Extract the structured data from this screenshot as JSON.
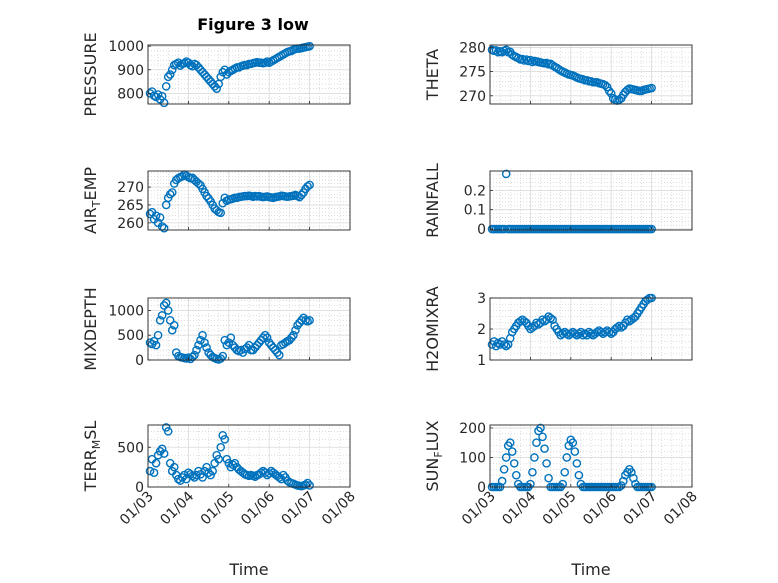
{
  "figure": {
    "title": "Figure 3 low"
  },
  "accent_color": "#0072BD",
  "x_tick_labels": [
    "01/03",
    "01/04",
    "01/05",
    "01/06",
    "01/07",
    "01/08"
  ],
  "chart_data": [
    {
      "type": "scatter",
      "ylabel": "PRESSURE",
      "xlabel": "",
      "xlim": [
        3,
        8
      ],
      "ylim": [
        755,
        1005
      ],
      "yticks": [
        800,
        900,
        1000
      ],
      "grid": true,
      "marker": "circle-open",
      "x": [
        3.05,
        3.1,
        3.15,
        3.2,
        3.25,
        3.3,
        3.35,
        3.4,
        3.45,
        3.5,
        3.55,
        3.6,
        3.65,
        3.7,
        3.75,
        3.8,
        3.85,
        3.9,
        3.95,
        4.0,
        4.05,
        4.1,
        4.15,
        4.2,
        4.25,
        4.3,
        4.35,
        4.4,
        4.45,
        4.5,
        4.55,
        4.6,
        4.65,
        4.7,
        4.75,
        4.8,
        4.85,
        4.9,
        4.95,
        5.0,
        5.05,
        5.1,
        5.15,
        5.2,
        5.25,
        5.3,
        5.35,
        5.4,
        5.45,
        5.5,
        5.55,
        5.6,
        5.65,
        5.7,
        5.75,
        5.8,
        5.85,
        5.9,
        5.95,
        6.0,
        6.05,
        6.1,
        6.15,
        6.2,
        6.25,
        6.3,
        6.35,
        6.4,
        6.45,
        6.5,
        6.55,
        6.6,
        6.65,
        6.7,
        6.75,
        6.8,
        6.85,
        6.9,
        6.95,
        7.0
      ],
      "y": [
        800,
        808,
        790,
        785,
        795,
        775,
        788,
        760,
        830,
        870,
        880,
        900,
        920,
        925,
        930,
        918,
        925,
        928,
        935,
        930,
        920,
        915,
        925,
        920,
        910,
        900,
        890,
        880,
        870,
        860,
        850,
        840,
        830,
        820,
        840,
        870,
        890,
        900,
        880,
        890,
        895,
        900,
        905,
        910,
        910,
        915,
        918,
        920,
        920,
        925,
        925,
        928,
        930,
        932,
        930,
        930,
        928,
        930,
        935,
        930,
        935,
        940,
        945,
        950,
        955,
        960,
        965,
        970,
        975,
        978,
        980,
        985,
        988,
        990,
        990,
        992,
        994,
        996,
        998,
        1000
      ]
    },
    {
      "type": "scatter",
      "ylabel": "THETA",
      "xlabel": "",
      "xlim": [
        3,
        8
      ],
      "ylim": [
        268.3,
        280.5
      ],
      "yticks": [
        270,
        275,
        280
      ],
      "grid": true,
      "marker": "circle-open",
      "x": [
        3.05,
        3.1,
        3.15,
        3.2,
        3.25,
        3.3,
        3.35,
        3.4,
        3.45,
        3.5,
        3.55,
        3.6,
        3.65,
        3.7,
        3.75,
        3.8,
        3.85,
        3.9,
        3.95,
        4.0,
        4.05,
        4.1,
        4.15,
        4.2,
        4.25,
        4.3,
        4.35,
        4.4,
        4.45,
        4.5,
        4.55,
        4.6,
        4.65,
        4.7,
        4.75,
        4.8,
        4.85,
        4.9,
        4.95,
        5.0,
        5.05,
        5.1,
        5.15,
        5.2,
        5.25,
        5.3,
        5.35,
        5.4,
        5.45,
        5.5,
        5.55,
        5.6,
        5.65,
        5.7,
        5.75,
        5.8,
        5.85,
        5.9,
        5.95,
        6.0,
        6.05,
        6.1,
        6.15,
        6.2,
        6.25,
        6.3,
        6.35,
        6.4,
        6.45,
        6.5,
        6.55,
        6.6,
        6.65,
        6.7,
        6.75,
        6.8,
        6.85,
        6.9,
        6.95,
        7.0
      ],
      "y": [
        279.5,
        279.3,
        279.4,
        279,
        279.2,
        279,
        279.3,
        279.5,
        279,
        279.1,
        278.5,
        278.2,
        278,
        277.8,
        277.5,
        277.6,
        277.3,
        277.5,
        277.2,
        277.4,
        277,
        277.2,
        277.1,
        277,
        276.9,
        276.8,
        276.7,
        276.8,
        276.5,
        276.6,
        276.3,
        276,
        275.8,
        275.5,
        275.2,
        275,
        274.8,
        274.6,
        274.4,
        274.3,
        274.2,
        274,
        273.8,
        273.6,
        273.5,
        273.4,
        273.2,
        273.2,
        273,
        273,
        272.8,
        272.8,
        272.8,
        272.6,
        272.5,
        272.4,
        272.2,
        271.8,
        271,
        270.5,
        269.5,
        269.2,
        269,
        269.2,
        269.5,
        270.2,
        270.8,
        271.2,
        271.5,
        271.4,
        271.3,
        271.2,
        271.1,
        271.0,
        271.0,
        271.2,
        271.3,
        271.4,
        271.5,
        271.6
      ]
    },
    {
      "type": "scatter",
      "ylabel": "AIR_TEMP",
      "xlabel": "",
      "xlim": [
        3,
        8
      ],
      "ylim": [
        258,
        274.5
      ],
      "yticks": [
        260,
        265,
        270
      ],
      "grid": true,
      "marker": "circle-open",
      "x": [
        3.05,
        3.1,
        3.15,
        3.2,
        3.25,
        3.3,
        3.35,
        3.4,
        3.45,
        3.5,
        3.55,
        3.6,
        3.65,
        3.7,
        3.75,
        3.8,
        3.85,
        3.9,
        3.95,
        4.0,
        4.05,
        4.1,
        4.15,
        4.2,
        4.25,
        4.3,
        4.35,
        4.4,
        4.45,
        4.5,
        4.55,
        4.6,
        4.65,
        4.7,
        4.75,
        4.8,
        4.85,
        4.9,
        4.95,
        5.0,
        5.05,
        5.1,
        5.15,
        5.2,
        5.25,
        5.3,
        5.35,
        5.4,
        5.45,
        5.5,
        5.55,
        5.6,
        5.65,
        5.7,
        5.75,
        5.8,
        5.85,
        5.9,
        5.95,
        6.0,
        6.05,
        6.1,
        6.15,
        6.2,
        6.25,
        6.3,
        6.35,
        6.4,
        6.45,
        6.5,
        6.55,
        6.6,
        6.65,
        6.7,
        6.75,
        6.8,
        6.85,
        6.9,
        6.95,
        7.0
      ],
      "y": [
        262.5,
        263,
        261,
        262,
        260,
        261.5,
        259,
        258.5,
        265,
        267,
        268,
        268.5,
        271,
        272,
        272.5,
        272.8,
        273,
        273.5,
        273.2,
        272.8,
        272.5,
        272.6,
        272,
        271.5,
        271,
        270.5,
        269.5,
        268.5,
        267.5,
        266.8,
        266,
        265,
        264,
        263.5,
        263,
        262.8,
        265.5,
        267,
        266.2,
        266.5,
        266.6,
        266.8,
        267,
        267,
        267.2,
        267.3,
        267.4,
        267.5,
        267.5,
        267.6,
        267.5,
        267.3,
        267.5,
        267.4,
        267.5,
        267.3,
        267.2,
        267.3,
        267.4,
        267.2,
        267.1,
        267,
        267.2,
        267.3,
        267.4,
        267.6,
        267.5,
        267.4,
        267.3,
        267.4,
        267.5,
        267.6,
        267.8,
        267.5,
        267.2,
        267.8,
        268.5,
        269.5,
        270.2,
        270.6
      ]
    },
    {
      "type": "scatter",
      "ylabel": "RAINFALL",
      "xlabel": "",
      "xlim": [
        3,
        8
      ],
      "ylim": [
        -0.005,
        0.3
      ],
      "yticks": [
        0,
        0.1,
        0.2
      ],
      "grid": true,
      "marker": "circle-open",
      "x": [
        3.05,
        3.1,
        3.15,
        3.2,
        3.25,
        3.3,
        3.35,
        3.4,
        3.45,
        3.5,
        3.55,
        3.6,
        3.65,
        3.7,
        3.75,
        3.8,
        3.85,
        3.9,
        3.95,
        4.0,
        4.05,
        4.1,
        4.15,
        4.2,
        4.25,
        4.3,
        4.35,
        4.4,
        4.45,
        4.5,
        4.55,
        4.6,
        4.65,
        4.7,
        4.75,
        4.8,
        4.85,
        4.9,
        4.95,
        5.0,
        5.05,
        5.1,
        5.15,
        5.2,
        5.25,
        5.3,
        5.35,
        5.4,
        5.45,
        5.5,
        5.55,
        5.6,
        5.65,
        5.7,
        5.75,
        5.8,
        5.85,
        5.9,
        5.95,
        6.0,
        6.05,
        6.1,
        6.15,
        6.2,
        6.25,
        6.3,
        6.35,
        6.4,
        6.45,
        6.5,
        6.55,
        6.6,
        6.65,
        6.7,
        6.75,
        6.8,
        6.85,
        6.9,
        6.95,
        7.0
      ],
      "y": [
        0,
        0,
        0,
        0,
        0,
        0,
        0,
        0.285,
        0,
        0,
        0,
        0,
        0,
        0,
        0,
        0,
        0,
        0,
        0,
        0,
        0,
        0,
        0,
        0,
        0,
        0,
        0,
        0,
        0,
        0,
        0,
        0,
        0,
        0,
        0,
        0,
        0,
        0,
        0,
        0,
        0,
        0,
        0,
        0,
        0,
        0,
        0,
        0,
        0,
        0,
        0,
        0,
        0,
        0,
        0,
        0,
        0,
        0,
        0,
        0,
        0,
        0,
        0,
        0,
        0,
        0,
        0,
        0,
        0,
        0,
        0,
        0,
        0,
        0,
        0,
        0,
        0,
        0,
        0,
        0
      ]
    },
    {
      "type": "scatter",
      "ylabel": "MIXDEPTH",
      "xlabel": "",
      "xlim": [
        3,
        8
      ],
      "ylim": [
        0,
        1250
      ],
      "yticks": [
        0,
        500,
        1000
      ],
      "grid": true,
      "marker": "circle-open",
      "x": [
        3.05,
        3.1,
        3.15,
        3.2,
        3.25,
        3.3,
        3.35,
        3.4,
        3.45,
        3.5,
        3.55,
        3.6,
        3.65,
        3.7,
        3.75,
        3.8,
        3.85,
        3.9,
        3.95,
        4.0,
        4.05,
        4.1,
        4.15,
        4.2,
        4.25,
        4.3,
        4.35,
        4.4,
        4.45,
        4.5,
        4.55,
        4.6,
        4.65,
        4.7,
        4.75,
        4.8,
        4.85,
        4.9,
        4.95,
        5.0,
        5.05,
        5.1,
        5.15,
        5.2,
        5.25,
        5.3,
        5.35,
        5.4,
        5.45,
        5.5,
        5.55,
        5.6,
        5.65,
        5.7,
        5.75,
        5.8,
        5.85,
        5.9,
        5.95,
        6.0,
        6.05,
        6.1,
        6.15,
        6.2,
        6.25,
        6.3,
        6.35,
        6.4,
        6.45,
        6.5,
        6.55,
        6.6,
        6.65,
        6.7,
        6.75,
        6.8,
        6.85,
        6.9,
        6.95,
        7.0
      ],
      "y": [
        350,
        320,
        380,
        300,
        500,
        800,
        900,
        1100,
        1150,
        1000,
        800,
        600,
        700,
        150,
        80,
        60,
        50,
        40,
        30,
        50,
        20,
        60,
        100,
        200,
        300,
        400,
        500,
        350,
        250,
        150,
        100,
        60,
        40,
        20,
        10,
        30,
        80,
        400,
        300,
        350,
        450,
        300,
        250,
        200,
        180,
        200,
        150,
        220,
        250,
        300,
        200,
        200,
        250,
        300,
        350,
        400,
        450,
        500,
        450,
        350,
        300,
        250,
        200,
        150,
        100,
        300,
        320,
        350,
        380,
        400,
        450,
        500,
        600,
        700,
        750,
        800,
        850,
        800,
        780,
        800
      ]
    },
    {
      "type": "scatter",
      "ylabel": "H2OMIXRA",
      "xlabel": "",
      "xlim": [
        3,
        8
      ],
      "ylim": [
        1,
        3
      ],
      "yticks": [
        1,
        2,
        3
      ],
      "grid": true,
      "marker": "circle-open",
      "x": [
        3.05,
        3.1,
        3.15,
        3.2,
        3.25,
        3.3,
        3.35,
        3.4,
        3.45,
        3.5,
        3.55,
        3.6,
        3.65,
        3.7,
        3.75,
        3.8,
        3.85,
        3.9,
        3.95,
        4.0,
        4.05,
        4.1,
        4.15,
        4.2,
        4.25,
        4.3,
        4.35,
        4.4,
        4.45,
        4.5,
        4.55,
        4.6,
        4.65,
        4.7,
        4.75,
        4.8,
        4.85,
        4.9,
        4.95,
        5.0,
        5.05,
        5.1,
        5.15,
        5.2,
        5.25,
        5.3,
        5.35,
        5.4,
        5.45,
        5.5,
        5.55,
        5.6,
        5.65,
        5.7,
        5.75,
        5.8,
        5.85,
        5.9,
        5.95,
        6.0,
        6.05,
        6.1,
        6.15,
        6.2,
        6.25,
        6.3,
        6.35,
        6.4,
        6.45,
        6.5,
        6.55,
        6.6,
        6.65,
        6.7,
        6.75,
        6.8,
        6.85,
        6.9,
        6.95,
        7.0
      ],
      "y": [
        1.5,
        1.6,
        1.45,
        1.55,
        1.5,
        1.6,
        1.5,
        1.45,
        1.5,
        1.7,
        1.9,
        2.0,
        2.1,
        2.2,
        2.25,
        2.3,
        2.25,
        2.2,
        2.1,
        2.0,
        2.05,
        2.1,
        2.2,
        2.15,
        2.2,
        2.3,
        2.25,
        2.3,
        2.4,
        2.35,
        2.3,
        2.1,
        2.0,
        1.9,
        1.8,
        1.85,
        1.9,
        1.85,
        1.8,
        1.85,
        1.9,
        1.85,
        1.8,
        1.85,
        1.9,
        1.8,
        1.85,
        1.8,
        1.9,
        1.85,
        1.8,
        1.85,
        1.9,
        1.95,
        1.9,
        1.85,
        1.9,
        1.95,
        1.9,
        1.85,
        1.9,
        2.0,
        2.05,
        2.1,
        2.05,
        2.1,
        2.2,
        2.3,
        2.25,
        2.3,
        2.35,
        2.4,
        2.5,
        2.6,
        2.7,
        2.8,
        2.9,
        2.95,
        3.0,
        3.0
      ]
    },
    {
      "type": "scatter",
      "ylabel": "TERR_MSL",
      "xlabel": "Time",
      "xlim": [
        3,
        8
      ],
      "ylim": [
        0,
        780
      ],
      "yticks": [
        0,
        500
      ],
      "grid": true,
      "marker": "circle-open",
      "x": [
        3.05,
        3.1,
        3.15,
        3.2,
        3.25,
        3.3,
        3.35,
        3.4,
        3.45,
        3.5,
        3.55,
        3.6,
        3.65,
        3.7,
        3.75,
        3.8,
        3.85,
        3.9,
        3.95,
        4.0,
        4.05,
        4.1,
        4.15,
        4.2,
        4.25,
        4.3,
        4.35,
        4.4,
        4.45,
        4.5,
        4.55,
        4.6,
        4.65,
        4.7,
        4.75,
        4.8,
        4.85,
        4.9,
        4.95,
        5.0,
        5.05,
        5.1,
        5.15,
        5.2,
        5.25,
        5.3,
        5.35,
        5.4,
        5.45,
        5.5,
        5.55,
        5.6,
        5.65,
        5.7,
        5.75,
        5.8,
        5.85,
        5.9,
        5.95,
        6.0,
        6.05,
        6.1,
        6.15,
        6.2,
        6.25,
        6.3,
        6.35,
        6.4,
        6.45,
        6.5,
        6.55,
        6.6,
        6.65,
        6.7,
        6.75,
        6.8,
        6.85,
        6.9,
        6.95,
        7.0
      ],
      "y": [
        200,
        350,
        180,
        300,
        400,
        450,
        480,
        420,
        750,
        700,
        300,
        200,
        250,
        150,
        100,
        80,
        120,
        150,
        100,
        180,
        160,
        140,
        120,
        150,
        200,
        160,
        120,
        200,
        250,
        180,
        150,
        200,
        300,
        400,
        350,
        500,
        650,
        600,
        350,
        300,
        250,
        280,
        300,
        250,
        220,
        200,
        180,
        160,
        150,
        140,
        150,
        140,
        130,
        150,
        160,
        180,
        200,
        180,
        150,
        170,
        200,
        180,
        160,
        140,
        120,
        100,
        150,
        120,
        80,
        60,
        50,
        40,
        30,
        20,
        15,
        10,
        20,
        30,
        50,
        20
      ]
    },
    {
      "type": "scatter",
      "ylabel": "SUN_FLUX",
      "xlabel": "Time",
      "xlim": [
        3,
        8
      ],
      "ylim": [
        0,
        210
      ],
      "yticks": [
        0,
        100,
        200
      ],
      "grid": true,
      "marker": "circle-open",
      "x": [
        3.05,
        3.1,
        3.15,
        3.2,
        3.25,
        3.3,
        3.35,
        3.4,
        3.45,
        3.5,
        3.55,
        3.6,
        3.65,
        3.7,
        3.75,
        3.8,
        3.85,
        3.9,
        3.95,
        4.0,
        4.05,
        4.1,
        4.15,
        4.2,
        4.25,
        4.3,
        4.35,
        4.4,
        4.45,
        4.5,
        4.55,
        4.6,
        4.65,
        4.7,
        4.75,
        4.8,
        4.85,
        4.9,
        4.95,
        5.0,
        5.05,
        5.1,
        5.15,
        5.2,
        5.25,
        5.3,
        5.35,
        5.4,
        5.45,
        5.5,
        5.55,
        5.6,
        5.65,
        5.7,
        5.75,
        5.8,
        5.85,
        5.9,
        5.95,
        6.0,
        6.05,
        6.1,
        6.15,
        6.2,
        6.25,
        6.3,
        6.35,
        6.4,
        6.45,
        6.5,
        6.55,
        6.6,
        6.65,
        6.7,
        6.75,
        6.8,
        6.85,
        6.9,
        6.95,
        7.0
      ],
      "y": [
        0,
        0,
        0,
        0,
        0,
        20,
        60,
        100,
        140,
        150,
        120,
        80,
        40,
        10,
        0,
        0,
        0,
        0,
        0,
        10,
        50,
        100,
        150,
        190,
        200,
        170,
        130,
        80,
        30,
        0,
        0,
        0,
        0,
        0,
        0,
        10,
        50,
        100,
        140,
        160,
        150,
        120,
        80,
        40,
        10,
        0,
        0,
        0,
        0,
        0,
        0,
        0,
        0,
        0,
        0,
        0,
        0,
        0,
        0,
        0,
        0,
        0,
        0,
        0,
        5,
        20,
        40,
        50,
        60,
        50,
        30,
        10,
        0,
        0,
        0,
        0,
        0,
        0,
        0,
        0
      ]
    }
  ]
}
